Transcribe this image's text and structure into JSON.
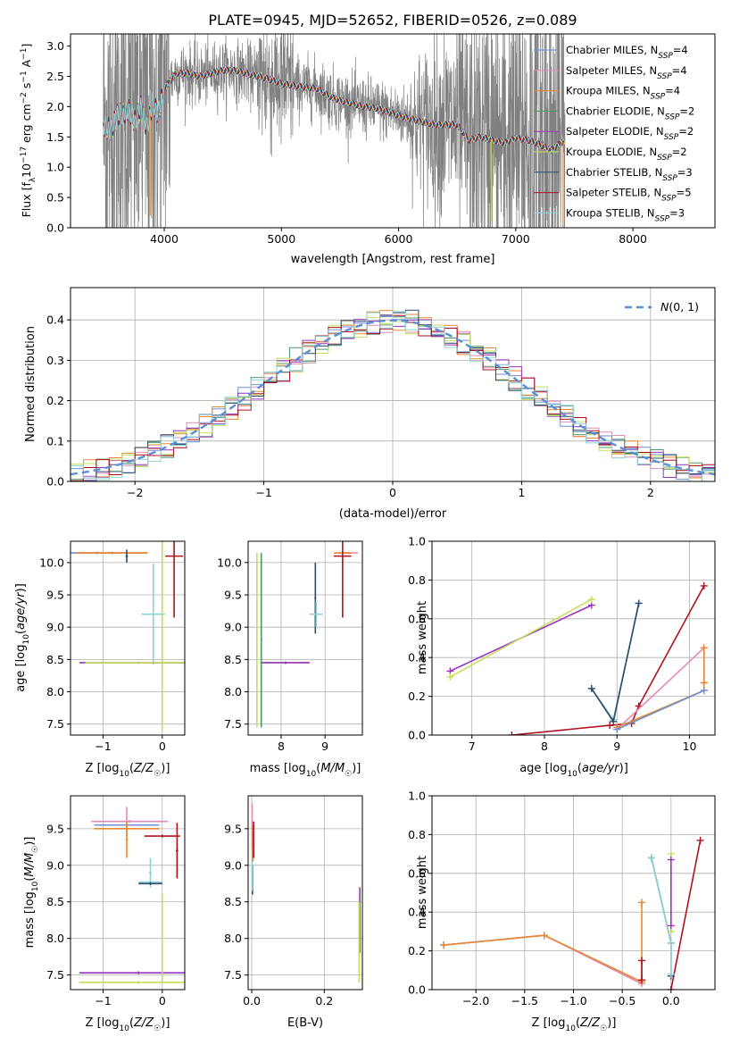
{
  "figure_title": "PLATE=0945, MJD=52652, FIBERID=0526, z=0.089",
  "colors": {
    "chabrier_miles": "#6f8fd8",
    "salpeter_miles": "#e58bb7",
    "kroupa_miles": "#e8892f",
    "chabrier_elodie": "#4f9a6a",
    "salpeter_elodie": "#9a32c4",
    "kroupa_elodie": "#c5df5a",
    "chabrier_stelib": "#2b4a66",
    "salpeter_stelib": "#b0111f",
    "kroupa_stelib": "#8fd2d6",
    "data": "#808080",
    "normal": "#5a8fd6"
  },
  "chart_data": [
    {
      "id": "spectrum",
      "type": "line",
      "title": "PLATE=0945, MJD=52652, FIBERID=0526, z=0.089",
      "xlabel": "wavelength [Angstrom, rest frame]",
      "ylabel": "Flux [f_λ10^-17 erg cm^-2 s^-1 A^-1]",
      "xlim": [
        3200,
        8700
      ],
      "ylim": [
        0,
        3.2
      ],
      "xticks": [
        4000,
        5000,
        6000,
        7000,
        8000
      ],
      "yticks": [
        0.0,
        0.5,
        1.0,
        1.5,
        2.0,
        2.5,
        3.0
      ],
      "grid": false,
      "legend_position": "top-right",
      "data_range": [
        3480,
        7420
      ],
      "model_profile": {
        "x": [
          3480,
          3500,
          3550,
          3600,
          3650,
          3700,
          3750,
          3800,
          3850,
          3900,
          3950,
          4000,
          4100,
          4200,
          4300,
          4400,
          4500,
          4600,
          4700,
          4800,
          4900,
          5000,
          5100,
          5200,
          5300,
          5400,
          5500,
          5600,
          5700,
          5800,
          5900,
          6000,
          6100,
          6200,
          6300,
          6400,
          6500,
          6600,
          6700,
          6800,
          6900,
          7000,
          7100,
          7200,
          7300,
          7400,
          7420
        ],
        "y": [
          1.7,
          1.65,
          1.62,
          1.85,
          1.88,
          1.95,
          1.75,
          2.0,
          1.65,
          2.05,
          1.9,
          2.3,
          2.55,
          2.55,
          2.5,
          2.55,
          2.6,
          2.6,
          2.55,
          2.5,
          2.45,
          2.38,
          2.35,
          2.32,
          2.3,
          2.18,
          2.1,
          2.05,
          2.0,
          1.98,
          1.92,
          1.85,
          1.8,
          1.75,
          1.7,
          1.7,
          1.7,
          1.45,
          1.5,
          1.45,
          1.4,
          1.48,
          1.45,
          1.38,
          1.28,
          1.42,
          1.4
        ]
      },
      "series": [
        {
          "name": "Chabrier MILES, N_SSP=4",
          "color_key": "chabrier_miles"
        },
        {
          "name": "Salpeter MILES, N_SSP=4",
          "color_key": "salpeter_miles"
        },
        {
          "name": "Kroupa MILES, N_SSP=4",
          "color_key": "kroupa_miles"
        },
        {
          "name": "Chabrier ELODIE, N_SSP=2",
          "color_key": "chabrier_elodie"
        },
        {
          "name": "Salpeter ELODIE, N_SSP=2",
          "color_key": "salpeter_elodie"
        },
        {
          "name": "Kroupa ELODIE, N_SSP=2",
          "color_key": "kroupa_elodie"
        },
        {
          "name": "Chabrier STELIB, N_SSP=3",
          "color_key": "chabrier_stelib"
        },
        {
          "name": "Salpeter STELIB, N_SSP=5",
          "color_key": "salpeter_stelib"
        },
        {
          "name": "Kroupa STELIB, N_SSP=3",
          "color_key": "kroupa_stelib"
        }
      ]
    },
    {
      "id": "residuals",
      "type": "histogram",
      "xlabel": "(data-model)/error",
      "ylabel": "Normed distribution",
      "xlim": [
        -2.5,
        2.5
      ],
      "ylim": [
        0,
        0.48
      ],
      "xticks": [
        -2,
        -1,
        0,
        1,
        2
      ],
      "yticks": [
        0.0,
        0.1,
        0.2,
        0.3,
        0.4
      ],
      "grid": true,
      "legend_position": "top-right",
      "legend": "N(0,1)",
      "bin_width": 0.1,
      "bin_start": -2.5,
      "bins": 50
    },
    {
      "id": "age_vs_z",
      "type": "scatter",
      "xlabel": "Z [log10(Z/Z☉)]",
      "ylabel": "age [log10(age/yr)]",
      "xlim": [
        -1.55,
        0.38
      ],
      "ylim": [
        7.33,
        10.33
      ],
      "xticks": [
        -1,
        0
      ],
      "yticks": [
        7.5,
        8.0,
        8.5,
        9.0,
        9.5,
        10.0
      ],
      "grid": true,
      "points": [
        {
          "color_key": "chabrier_miles",
          "x": -1.1,
          "xerr": 0.45,
          "y": 10.15,
          "yerr": 0.02
        },
        {
          "color_key": "salpeter_miles",
          "x": -0.85,
          "xerr": 0.6,
          "y": 10.15,
          "yerr": 0.02
        },
        {
          "color_key": "kroupa_miles",
          "x": -0.85,
          "xerr": 0.6,
          "y": 10.15,
          "yerr": 0.02
        },
        {
          "color_key": "chabrier_stelib",
          "x": -0.6,
          "xerr": 0.02,
          "y": 10.1,
          "yerr": 0.1
        },
        {
          "color_key": "salpeter_stelib",
          "x": 0.2,
          "xerr": 0.15,
          "y": 10.1,
          "yerr": 0.95
        },
        {
          "color_key": "kroupa_stelib",
          "x": -0.15,
          "xerr": 0.2,
          "y": 9.2,
          "yerr": 0.78
        },
        {
          "color_key": "salpeter_elodie",
          "x": -0.4,
          "xerr": 1.0,
          "y": 8.45,
          "yerr": 0.02
        },
        {
          "color_key": "kroupa_elodie",
          "x": -0.4,
          "xerr": 0.9,
          "y": 8.45,
          "yerr": 0.02
        },
        {
          "color_key": "kroupa_elodie",
          "x": 0.0,
          "xerr": 0.01,
          "y": 8.9,
          "yerr": 1.5
        }
      ]
    },
    {
      "id": "age_vs_mass",
      "type": "scatter",
      "xlabel": "mass [log10(M/M☉)]",
      "ylabel": "",
      "xlim": [
        7.25,
        9.85
      ],
      "ylim": [
        7.33,
        10.33
      ],
      "xticks": [
        8,
        9
      ],
      "yticks": [
        7.5,
        8.0,
        8.5,
        9.0,
        9.5,
        10.0
      ],
      "grid": true,
      "points": [
        {
          "color_key": "salpeter_miles",
          "x": 9.55,
          "xerr": 0.2,
          "y": 10.15,
          "yerr": 0.02
        },
        {
          "color_key": "kroupa_miles",
          "x": 9.4,
          "xerr": 0.2,
          "y": 10.15,
          "yerr": 0.02
        },
        {
          "color_key": "chabrier_stelib",
          "x": 8.78,
          "xerr": 0.02,
          "y": 9.45,
          "yerr": 0.55
        },
        {
          "color_key": "salpeter_stelib",
          "x": 9.4,
          "xerr": 0.2,
          "y": 10.1,
          "yerr": 0.95
        },
        {
          "color_key": "kroupa_stelib",
          "x": 8.8,
          "xerr": 0.15,
          "y": 9.2,
          "yerr": 0.2
        },
        {
          "color_key": "kroupa_elodie",
          "x": 7.45,
          "xerr": 0.02,
          "y": 8.8,
          "yerr": 1.35
        },
        {
          "color_key": "kroupa_elodie",
          "x": 8.05,
          "xerr": 0.55,
          "y": 8.45,
          "yerr": 0.02
        },
        {
          "color_key": "salpeter_elodie",
          "x": 8.1,
          "xerr": 0.55,
          "y": 8.45,
          "yerr": 0.02
        },
        {
          "color_key": "chabrier_elodie",
          "x": 7.55,
          "xerr": 0.02,
          "y": 8.8,
          "yerr": 1.35
        }
      ]
    },
    {
      "id": "weight_vs_age",
      "type": "line",
      "xlabel": "age [log10(age/yr)]",
      "ylabel": "mass weight",
      "xlim": [
        6.45,
        10.35
      ],
      "ylim": [
        0,
        1.0
      ],
      "xticks": [
        7,
        8,
        9,
        10
      ],
      "yticks": [
        0.0,
        0.2,
        0.4,
        0.6,
        0.8,
        1.0
      ],
      "grid": true,
      "series": [
        {
          "color_key": "salpeter_elodie",
          "x": [
            6.7,
            8.65
          ],
          "y": [
            0.33,
            0.67
          ]
        },
        {
          "color_key": "kroupa_elodie",
          "x": [
            6.7,
            8.65
          ],
          "y": [
            0.3,
            0.7
          ]
        },
        {
          "color_key": "kroupa_stelib",
          "x": [
            8.65,
            8.95,
            9.3
          ],
          "y": [
            0.24,
            0.08,
            0.68
          ]
        },
        {
          "color_key": "chabrier_stelib",
          "x": [
            8.65,
            8.95,
            9.3
          ],
          "y": [
            0.24,
            0.07,
            0.68
          ]
        },
        {
          "color_key": "salpeter_stelib",
          "x": [
            7.55,
            8.9,
            9.2,
            9.3,
            10.2
          ],
          "y": [
            0.0,
            0.05,
            0.06,
            0.15,
            0.77
          ]
        },
        {
          "color_key": "salpeter_miles",
          "x": [
            9.0,
            10.2,
            10.2
          ],
          "y": [
            0.03,
            0.45,
            0.27
          ]
        },
        {
          "color_key": "kroupa_miles",
          "x": [
            9.0,
            10.2,
            10.2,
            10.2
          ],
          "y": [
            0.04,
            0.23,
            0.45,
            0.27
          ]
        },
        {
          "color_key": "chabrier_miles",
          "x": [
            9.0,
            10.2
          ],
          "y": [
            0.03,
            0.23
          ]
        }
      ]
    },
    {
      "id": "mass_vs_z",
      "type": "scatter",
      "xlabel": "Z [log10(Z/Z☉)]",
      "ylabel": "mass [log10(M/M☉)]",
      "xlim": [
        -1.55,
        0.38
      ],
      "ylim": [
        7.3,
        9.95
      ],
      "xticks": [
        -1,
        0
      ],
      "yticks": [
        7.5,
        8.0,
        8.5,
        9.0,
        9.5
      ],
      "grid": true,
      "points": [
        {
          "color_key": "salpeter_miles",
          "x": -0.55,
          "xerr": 0.65,
          "y": 9.6,
          "yerr": 0.02
        },
        {
          "color_key": "chabrier_miles",
          "x": -0.6,
          "xerr": 0.55,
          "y": 9.55,
          "yerr": 0.02
        },
        {
          "color_key": "kroupa_miles",
          "x": -0.6,
          "xerr": 0.55,
          "y": 9.5,
          "yerr": 0.02
        },
        {
          "color_key": "salpeter_miles",
          "x": -0.6,
          "xerr": 0.02,
          "y": 9.6,
          "yerr": 0.2
        },
        {
          "color_key": "kroupa_miles",
          "x": -0.6,
          "xerr": 0.02,
          "y": 9.35,
          "yerr": 0.25
        },
        {
          "color_key": "salpeter_stelib",
          "x": 0.0,
          "xerr": 0.3,
          "y": 9.4,
          "yerr": 0.02
        },
        {
          "color_key": "salpeter_stelib",
          "x": 0.25,
          "xerr": 0.02,
          "y": 9.2,
          "yerr": 0.38
        },
        {
          "color_key": "kroupa_stelib",
          "x": -0.2,
          "xerr": 0.2,
          "y": 8.77,
          "yerr": 0.02
        },
        {
          "color_key": "kroupa_stelib",
          "x": -0.2,
          "xerr": 0.02,
          "y": 8.9,
          "yerr": 0.2
        },
        {
          "color_key": "chabrier_stelib",
          "x": -0.2,
          "xerr": 0.2,
          "y": 8.75,
          "yerr": 0.02
        },
        {
          "color_key": "salpeter_elodie",
          "x": -0.4,
          "xerr": 1.0,
          "y": 7.53,
          "yerr": 0.02
        },
        {
          "color_key": "kroupa_elodie",
          "x": -0.4,
          "xerr": 1.0,
          "y": 7.4,
          "yerr": 0.02
        },
        {
          "color_key": "kroupa_elodie",
          "x": 0.0,
          "xerr": 0.01,
          "y": 8.0,
          "yerr": 0.6
        }
      ]
    },
    {
      "id": "mass_vs_ebv",
      "type": "scatter",
      "xlabel": "E(B-V)",
      "ylabel": "",
      "xlim": [
        -0.01,
        0.305
      ],
      "ylim": [
        7.3,
        9.95
      ],
      "xticks": [
        0.0,
        0.2
      ],
      "yticks": [
        7.5,
        8.0,
        8.5,
        9.0,
        9.5
      ],
      "grid": true,
      "points": [
        {
          "color_key": "salpeter_miles",
          "x": 0.001,
          "xerr": 0.001,
          "y": 9.55,
          "yerr": 0.3
        },
        {
          "color_key": "kroupa_miles",
          "x": 0.003,
          "xerr": 0.001,
          "y": 9.3,
          "yerr": 0.25
        },
        {
          "color_key": "salpeter_stelib",
          "x": 0.005,
          "xerr": 0.001,
          "y": 9.35,
          "yerr": 0.25
        },
        {
          "color_key": "chabrier_stelib",
          "x": 0.002,
          "xerr": 0.001,
          "y": 8.8,
          "yerr": 0.2
        },
        {
          "color_key": "kroupa_stelib",
          "x": 0.001,
          "xerr": 0.001,
          "y": 8.85,
          "yerr": 0.2
        },
        {
          "color_key": "salpeter_elodie",
          "x": 0.298,
          "xerr": 0.001,
          "y": 8.25,
          "yerr": 0.45
        },
        {
          "color_key": "kroupa_elodie",
          "x": 0.296,
          "xerr": 0.001,
          "y": 7.95,
          "yerr": 0.55
        }
      ]
    },
    {
      "id": "weight_vs_z",
      "type": "line",
      "xlabel": "Z [log10(Z/Z☉)]",
      "ylabel": "mass weight",
      "xlim": [
        -2.45,
        0.45
      ],
      "ylim": [
        0,
        1.0
      ],
      "xticks": [
        -2.0,
        -1.5,
        -1.0,
        -0.5,
        0.0
      ],
      "yticks": [
        0.0,
        0.2,
        0.4,
        0.6,
        0.8,
        1.0
      ],
      "grid": true,
      "series": [
        {
          "color_key": "chabrier_miles",
          "x": [
            -2.33,
            -1.3,
            -0.3
          ],
          "y": [
            0.23,
            0.28,
            0.04
          ]
        },
        {
          "color_key": "salpeter_miles",
          "x": [
            -2.33,
            -1.3,
            -0.3
          ],
          "y": [
            0.23,
            0.28,
            0.03
          ]
        },
        {
          "color_key": "kroupa_miles",
          "x": [
            -2.33,
            -1.3,
            -0.3,
            -0.3
          ],
          "y": [
            0.23,
            0.28,
            0.04,
            0.45
          ]
        },
        {
          "color_key": "salpeter_stelib",
          "x": [
            -0.3,
            -0.3
          ],
          "y": [
            0.05,
            0.15
          ]
        },
        {
          "color_key": "salpeter_stelib",
          "x": [
            0.0,
            0.3
          ],
          "y": [
            0.0,
            0.77
          ]
        },
        {
          "color_key": "chabrier_stelib",
          "x": [
            -0.2,
            0.0,
            0.0
          ],
          "y": [
            0.68,
            0.24,
            0.07
          ]
        },
        {
          "color_key": "kroupa_stelib",
          "x": [
            -0.2,
            0.0,
            0.0
          ],
          "y": [
            0.68,
            0.24,
            0.08
          ]
        },
        {
          "color_key": "kroupa_elodie",
          "x": [
            0.0,
            0.0
          ],
          "y": [
            0.3,
            0.7
          ]
        },
        {
          "color_key": "salpeter_elodie",
          "x": [
            0.0,
            0.0
          ],
          "y": [
            0.33,
            0.67
          ]
        }
      ]
    }
  ]
}
